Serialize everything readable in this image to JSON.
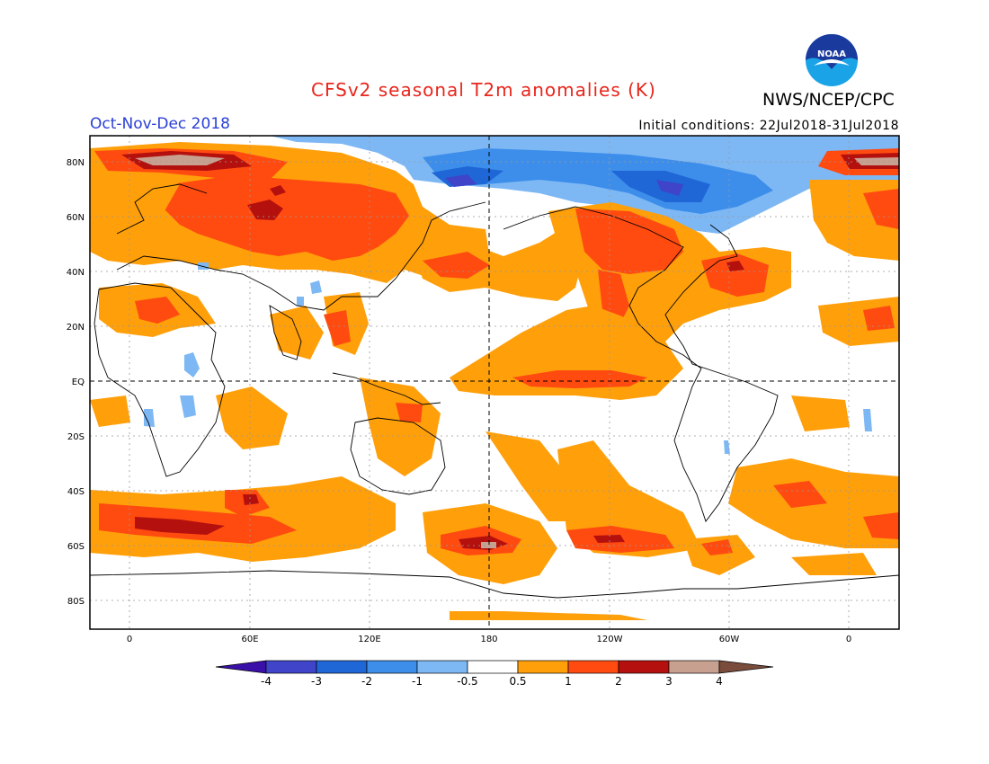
{
  "header": {
    "title": "CFSv2 seasonal T2m anomalies (K)",
    "agency": "NWS/NCEP/CPC",
    "season": "Oct-Nov-Dec 2018",
    "initial_conditions": "Initial conditions: 22Jul2018-31Jul2018",
    "logo_text": "NOAA"
  },
  "map": {
    "lat_labels": [
      "80N",
      "60N",
      "40N",
      "20N",
      "EQ",
      "20S",
      "40S",
      "60S",
      "80S"
    ],
    "lon_labels": [
      "0",
      "60E",
      "120E",
      "180",
      "120W",
      "60W",
      "0"
    ]
  },
  "colorbar": {
    "labels": [
      "-4",
      "-3",
      "-2",
      "-1",
      "-0.5",
      "0.5",
      "1",
      "2",
      "3",
      "4"
    ],
    "colors": [
      "#3a10a8",
      "#3f44c9",
      "#1f66d6",
      "#3d8eea",
      "#7db8f4",
      "#ffffff",
      "#ff9f0a",
      "#ff4a10",
      "#b4100d",
      "#c8a090",
      "#7a4c3c"
    ]
  }
}
